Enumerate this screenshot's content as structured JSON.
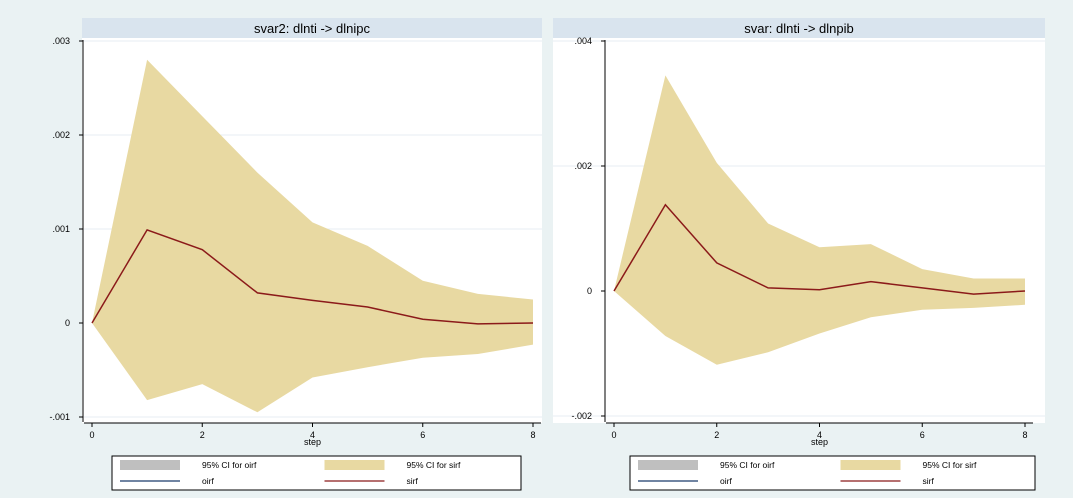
{
  "page": {
    "background": "#eaf2f3"
  },
  "colors": {
    "panel_bg": "#ffffff",
    "header_bg": "#d9e4ee",
    "ci_sirf": "#e8d9a2",
    "ci_oirf": "#bfbfbf",
    "sirf_line": "#8b1a1a",
    "oirf_line": "#1a3a6b",
    "grid": "#e7eef3",
    "axis": "#000000"
  },
  "chart_data": [
    {
      "type": "area",
      "title": "svar2: dlnti -> dlnipc",
      "xlabel": "step",
      "ylabel": "",
      "xlim": [
        0,
        8
      ],
      "ylim": [
        -0.001,
        0.003
      ],
      "x_ticks": [
        0,
        2,
        4,
        6,
        8
      ],
      "x_tick_labels": [
        "0",
        "2",
        "4",
        "6",
        "8"
      ],
      "y_ticks": [
        -0.001,
        0,
        0.001,
        0.002,
        0.003
      ],
      "y_tick_labels": [
        "-.001",
        "0",
        ".001",
        ".002",
        ".003"
      ],
      "grid": true,
      "x": [
        0,
        1,
        2,
        3,
        4,
        5,
        6,
        7,
        8
      ],
      "series": [
        {
          "name": "95% CI for sirf",
          "kind": "band",
          "upper": [
            0,
            0.0028,
            0.0022,
            0.0016,
            0.00107,
            0.00082,
            0.00045,
            0.00031,
            0.00025
          ],
          "lower": [
            0,
            -0.00082,
            -0.00065,
            -0.00095,
            -0.00058,
            -0.00047,
            -0.00037,
            -0.00033,
            -0.00023
          ]
        },
        {
          "name": "sirf",
          "kind": "line",
          "values": [
            0,
            0.00099,
            0.00078,
            0.00032,
            0.00024,
            0.00017,
            4e-05,
            -1e-05,
            0
          ]
        }
      ]
    },
    {
      "type": "area",
      "title": "svar: dlnti -> dlnpib",
      "xlabel": "step",
      "ylabel": "",
      "xlim": [
        0,
        8
      ],
      "ylim": [
        -0.002,
        0.004
      ],
      "x_ticks": [
        0,
        2,
        4,
        6,
        8
      ],
      "x_tick_labels": [
        "0",
        "2",
        "4",
        "6",
        "8"
      ],
      "y_ticks": [
        -0.002,
        0,
        0.002,
        0.004
      ],
      "y_tick_labels": [
        "-.002",
        "0",
        ".002",
        ".004"
      ],
      "grid": true,
      "x": [
        0,
        1,
        2,
        3,
        4,
        5,
        6,
        7,
        8
      ],
      "series": [
        {
          "name": "95% CI for sirf",
          "kind": "band",
          "upper": [
            0,
            0.00345,
            0.00205,
            0.00108,
            0.0007,
            0.00075,
            0.00035,
            0.0002,
            0.0002
          ],
          "lower": [
            0,
            -0.00072,
            -0.00118,
            -0.00098,
            -0.00068,
            -0.00042,
            -0.0003,
            -0.00027,
            -0.00022
          ]
        },
        {
          "name": "sirf",
          "kind": "line",
          "values": [
            0,
            0.00138,
            0.00045,
            5e-05,
            2e-05,
            0.00015,
            5e-05,
            -5e-05,
            0
          ]
        }
      ]
    }
  ],
  "legends": [
    {
      "items": [
        {
          "label": "95% CI for oirf",
          "kind": "band",
          "color": "#bfbfbf"
        },
        {
          "label": "95% CI for sirf",
          "kind": "band",
          "color": "#e8d9a2"
        },
        {
          "label": "oirf",
          "kind": "line",
          "color": "#1a3a6b"
        },
        {
          "label": "sirf",
          "kind": "line",
          "color": "#8b1a1a"
        }
      ]
    },
    {
      "items": [
        {
          "label": "95% CI for oirf",
          "kind": "band",
          "color": "#bfbfbf"
        },
        {
          "label": "95% CI for sirf",
          "kind": "band",
          "color": "#e8d9a2"
        },
        {
          "label": "oirf",
          "kind": "line",
          "color": "#1a3a6b"
        },
        {
          "label": "sirf",
          "kind": "line",
          "color": "#8b1a1a"
        }
      ]
    }
  ]
}
